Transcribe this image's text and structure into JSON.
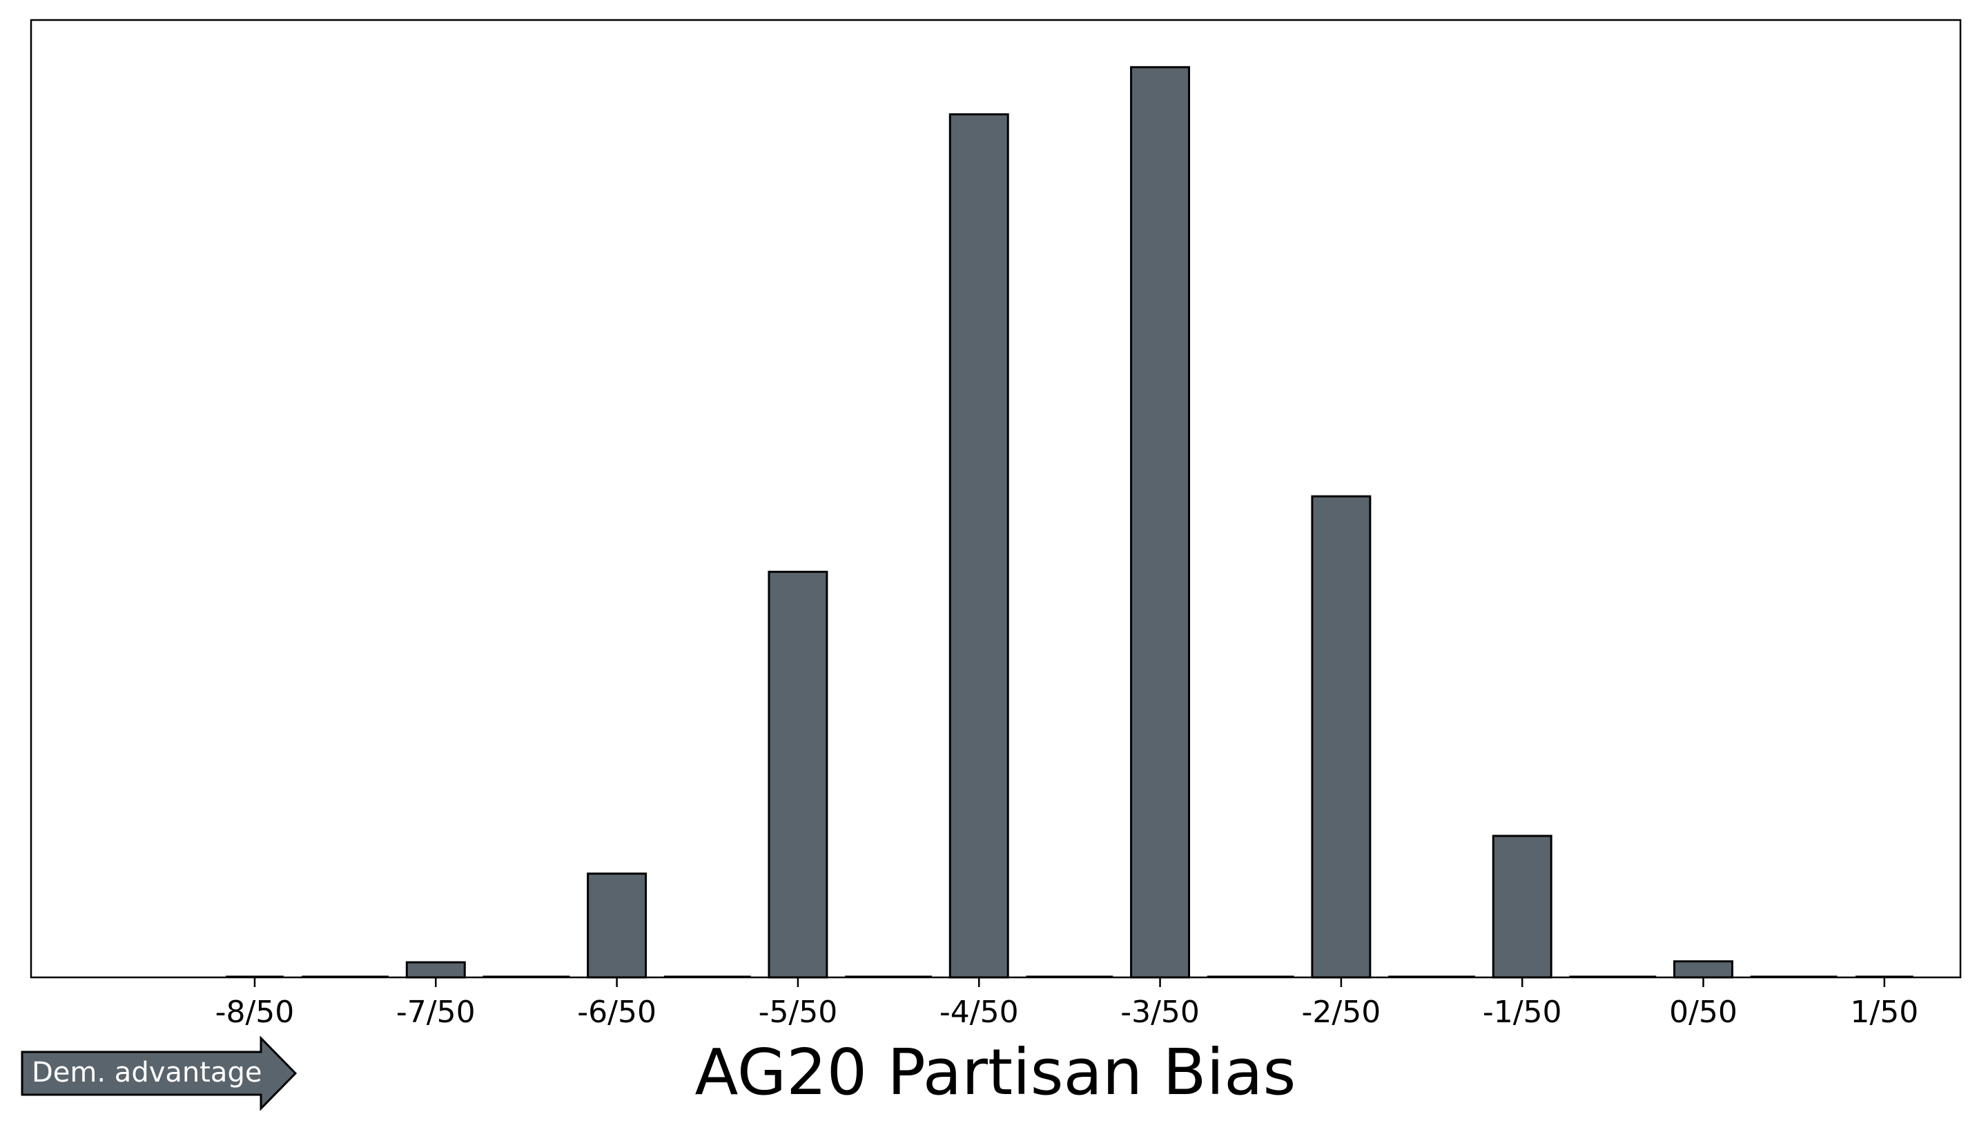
{
  "chart_data": {
    "type": "bar",
    "title": "",
    "xlabel": "AG20 Partisan Bias",
    "ylabel": "",
    "categories": [
      "-8/50",
      "-7/50",
      "-6/50",
      "-5/50",
      "-4/50",
      "-3/50",
      "-2/50",
      "-1/50",
      "0/50",
      "1/50"
    ],
    "x": [
      -0.16,
      -0.14,
      -0.12,
      -0.1,
      -0.08,
      -0.06,
      -0.04,
      -0.02,
      0.0,
      0.02
    ],
    "values": [
      0,
      16,
      110,
      430,
      915,
      965,
      510,
      150,
      17,
      0
    ],
    "xlim": [
      -0.1847,
      0.0284
    ],
    "ylim": [
      0,
      1015
    ],
    "y_ticks_shown": false,
    "grid": false,
    "legend": "none",
    "bar_color": "#5a646c",
    "edge_color": "#000000",
    "annotation": {
      "text": "Dem. advantage",
      "shape": "arrow-right",
      "position": "bottom-left",
      "fill": "#5a646c",
      "text_color": "#ffffff"
    }
  }
}
